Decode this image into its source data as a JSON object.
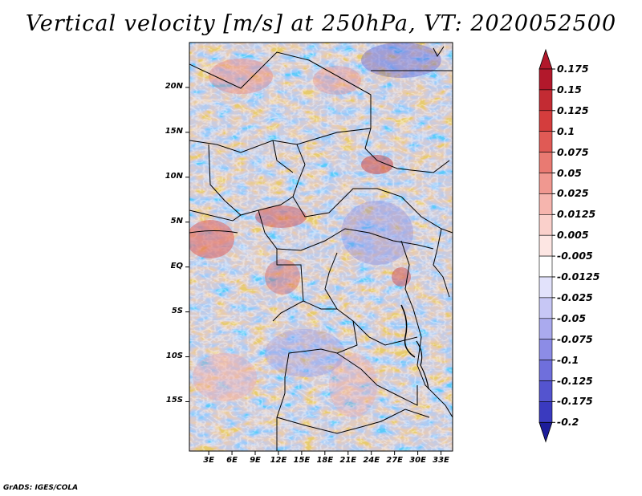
{
  "title": "Vertical velocity [m/s] at 250hPa, VT: 2020052500",
  "credit": "GrADS: IGES/COLA",
  "map": {
    "lat_range": [
      -20.5,
      25
    ],
    "lon_range": [
      0.5,
      34.5
    ],
    "lat_ticks": [
      {
        "value": 20,
        "label": "20N"
      },
      {
        "value": 15,
        "label": "15N"
      },
      {
        "value": 10,
        "label": "10N"
      },
      {
        "value": 5,
        "label": "5N"
      },
      {
        "value": 0,
        "label": "EQ"
      },
      {
        "value": -5,
        "label": "5S"
      },
      {
        "value": -10,
        "label": "10S"
      },
      {
        "value": -15,
        "label": "15S"
      }
    ],
    "lon_ticks": [
      {
        "value": 3,
        "label": "3E"
      },
      {
        "value": 6,
        "label": "6E"
      },
      {
        "value": 9,
        "label": "9E"
      },
      {
        "value": 12,
        "label": "12E"
      },
      {
        "value": 15,
        "label": "15E"
      },
      {
        "value": 18,
        "label": "18E"
      },
      {
        "value": 21,
        "label": "21E"
      },
      {
        "value": 24,
        "label": "24E"
      },
      {
        "value": 27,
        "label": "27E"
      },
      {
        "value": 30,
        "label": "30E"
      },
      {
        "value": 33,
        "label": "33E"
      }
    ]
  },
  "colorbar": {
    "levels": [
      {
        "label": "0.175",
        "color": "#b2182b"
      },
      {
        "label": "0.15",
        "color": "#c32b33"
      },
      {
        "label": "0.125",
        "color": "#d43d3d"
      },
      {
        "label": "0.1",
        "color": "#e05a55"
      },
      {
        "label": "0.075",
        "color": "#e97a72"
      },
      {
        "label": "0.05",
        "color": "#f09890"
      },
      {
        "label": "0.025",
        "color": "#f6b5ae"
      },
      {
        "label": "0.0125",
        "color": "#fad0cb"
      },
      {
        "label": "0.005",
        "color": "#fde6e3"
      },
      {
        "label": "-0.005",
        "color": "#ffffff"
      },
      {
        "label": "-0.0125",
        "color": "#e2e2fb"
      },
      {
        "label": "-0.025",
        "color": "#c7c7f5"
      },
      {
        "label": "-0.05",
        "color": "#aaaaee"
      },
      {
        "label": "-0.075",
        "color": "#8c8ce6"
      },
      {
        "label": "-0.1",
        "color": "#6f6fdc"
      },
      {
        "label": "-0.125",
        "color": "#5454cf"
      },
      {
        "label": "-0.175",
        "color": "#3a3abf"
      },
      {
        "label": "-0.2",
        "color": "#2424a8"
      }
    ],
    "top_arrow_color": "#b2182b",
    "bottom_arrow_color": "#1c1c9a"
  }
}
